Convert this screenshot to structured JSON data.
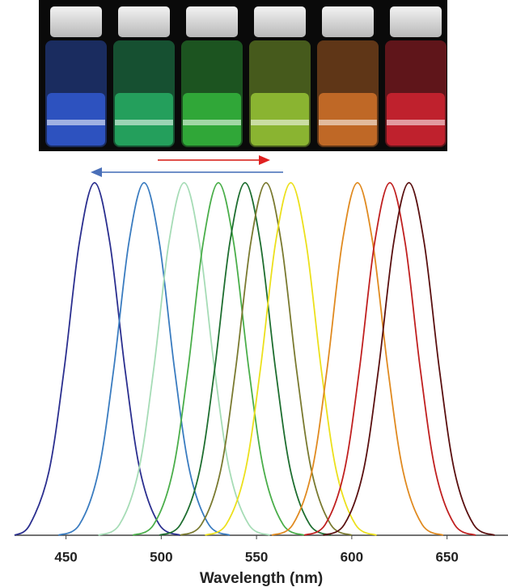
{
  "chart_data": {
    "type": "line",
    "x_label": "Wavelength (nm)",
    "xlim": [
      423,
      682
    ],
    "ylim": [
      0,
      1
    ],
    "xticks": [
      450,
      500,
      550,
      600,
      650
    ],
    "series": [
      {
        "color": "#2b2f8f",
        "x": [
          423,
          431,
          441,
          449,
          457,
          465,
          473,
          481,
          489,
          499,
          510
        ],
        "values": [
          0,
          0.03,
          0.18,
          0.47,
          0.83,
          1,
          0.83,
          0.47,
          0.18,
          0.03,
          0
        ]
      },
      {
        "color": "#3a7cc0",
        "x": [
          446,
          457,
          467,
          475,
          483,
          491,
          499,
          507,
          515,
          525,
          536
        ],
        "values": [
          0,
          0.03,
          0.18,
          0.47,
          0.83,
          1,
          0.83,
          0.47,
          0.18,
          0.03,
          0
        ]
      },
      {
        "color": "#a6dcb6",
        "x": [
          467,
          478,
          488,
          496,
          504,
          512,
          520,
          528,
          536,
          546,
          557
        ],
        "values": [
          0,
          0.03,
          0.18,
          0.47,
          0.83,
          1,
          0.83,
          0.47,
          0.18,
          0.03,
          0
        ]
      },
      {
        "color": "#4aae4a",
        "x": [
          485,
          496,
          506,
          514,
          522,
          530,
          538,
          546,
          554,
          564,
          575
        ],
        "values": [
          0,
          0.03,
          0.18,
          0.47,
          0.83,
          1,
          0.83,
          0.47,
          0.18,
          0.03,
          0
        ]
      },
      {
        "color": "#1e6e30",
        "x": [
          499,
          510,
          520,
          528,
          536,
          544,
          552,
          560,
          568,
          578,
          589
        ],
        "values": [
          0,
          0.03,
          0.18,
          0.47,
          0.83,
          1,
          0.83,
          0.47,
          0.18,
          0.03,
          0
        ]
      },
      {
        "color": "#7a7a30",
        "x": [
          510,
          521,
          531,
          539,
          547,
          555,
          563,
          571,
          579,
          589,
          600
        ],
        "values": [
          0,
          0.03,
          0.18,
          0.47,
          0.83,
          1,
          0.83,
          0.47,
          0.18,
          0.03,
          0
        ]
      },
      {
        "color": "#ece01c",
        "x": [
          523,
          534,
          544,
          552,
          560,
          568,
          576,
          584,
          592,
          602,
          613
        ],
        "values": [
          0,
          0.03,
          0.18,
          0.47,
          0.83,
          1,
          0.83,
          0.47,
          0.18,
          0.03,
          0
        ]
      },
      {
        "color": "#e08a20",
        "x": [
          558,
          569,
          579,
          587,
          595,
          603,
          611,
          619,
          627,
          637,
          648
        ],
        "values": [
          0,
          0.03,
          0.18,
          0.47,
          0.83,
          1,
          0.83,
          0.47,
          0.18,
          0.03,
          0
        ]
      },
      {
        "color": "#c02020",
        "x": [
          575,
          586,
          596,
          604,
          612,
          620,
          628,
          636,
          644,
          654,
          665
        ],
        "values": [
          0,
          0.03,
          0.18,
          0.47,
          0.83,
          1,
          0.83,
          0.47,
          0.18,
          0.03,
          0
        ]
      },
      {
        "color": "#5a1010",
        "x": [
          585,
          596,
          606,
          614,
          622,
          630,
          638,
          646,
          654,
          664,
          675
        ],
        "values": [
          0,
          0.03,
          0.18,
          0.47,
          0.83,
          1,
          0.83,
          0.47,
          0.18,
          0.03,
          0
        ]
      }
    ]
  }
}
